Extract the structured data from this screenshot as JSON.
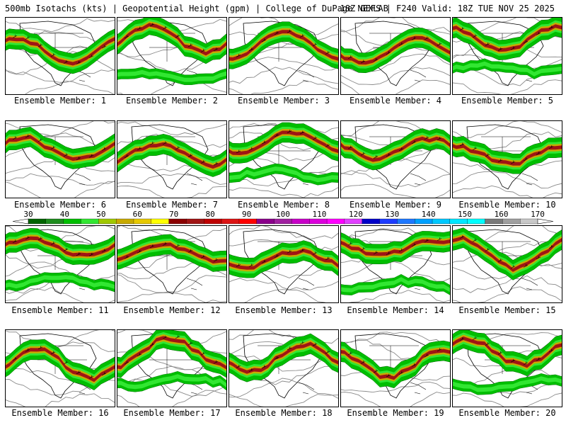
{
  "header": {
    "title": "500mb Isotachs (kts) | Geopotential Height (gpm) | College of DuPage NEXLAB",
    "valid": "18Z GEFS | F240 Valid: 18Z TUE NOV 25 2025"
  },
  "legend": {
    "ticks": [
      "30",
      "40",
      "50",
      "60",
      "70",
      "80",
      "90",
      "100",
      "110",
      "120",
      "130",
      "140",
      "150",
      "160",
      "170"
    ],
    "colors": [
      "#006400",
      "#1e8c1e",
      "#00be00",
      "#32e632",
      "#a0c800",
      "#c8aa00",
      "#e6c800",
      "#ffff00",
      "#8b0000",
      "#a01414",
      "#be0000",
      "#dc1414",
      "#ff0000",
      "#8b008b",
      "#a020a0",
      "#c800c8",
      "#dc00dc",
      "#ff00ff",
      "#e040ff",
      "#0000c8",
      "#1e3cff",
      "#1e78ff",
      "#00a0ff",
      "#00c8ff",
      "#00e6ff",
      "#00ffff",
      "#7a7a7a",
      "#a0a0a0",
      "#c8c8c8"
    ]
  },
  "members": [
    {
      "caption": "Ensemble Member: 1"
    },
    {
      "caption": "Ensemble Member: 2"
    },
    {
      "caption": "Ensemble Member: 3"
    },
    {
      "caption": "Ensemble Member: 4"
    },
    {
      "caption": "Ensemble Member: 5"
    },
    {
      "caption": "Ensemble Member: 6"
    },
    {
      "caption": "Ensemble Member: 7"
    },
    {
      "caption": "Ensemble Member: 8"
    },
    {
      "caption": "Ensemble Member: 9"
    },
    {
      "caption": "Ensemble Member: 10"
    },
    {
      "caption": "Ensemble Member: 11"
    },
    {
      "caption": "Ensemble Member: 12"
    },
    {
      "caption": "Ensemble Member: 13"
    },
    {
      "caption": "Ensemble Member: 14"
    },
    {
      "caption": "Ensemble Member: 15"
    },
    {
      "caption": "Ensemble Member: 16"
    },
    {
      "caption": "Ensemble Member: 17"
    },
    {
      "caption": "Ensemble Member: 18"
    },
    {
      "caption": "Ensemble Member: 19"
    },
    {
      "caption": "Ensemble Member: 20"
    }
  ]
}
